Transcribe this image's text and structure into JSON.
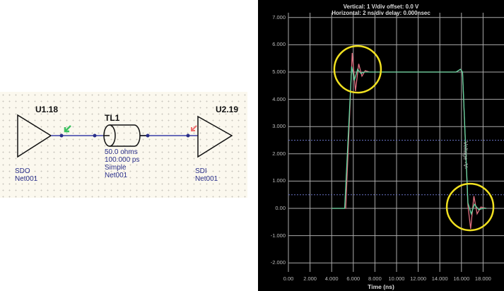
{
  "schematic": {
    "driver": {
      "ref": "U1.18",
      "pin": "SDO",
      "net": "Net001"
    },
    "line": {
      "ref": "TL1",
      "impedance": "50.0 ohms",
      "delay": "100.000 ps",
      "model": "Simple",
      "net": "Net001"
    },
    "receiver": {
      "ref": "U2.19",
      "pin": "SDI",
      "net": "Net001"
    },
    "colors": {
      "wire": "#3a3fa8",
      "probe_driver": "#3cc060",
      "probe_receiver": "#f07070"
    }
  },
  "scope": {
    "vertical": "Vertical: 1  V/div  offset: 0.0 V",
    "horizontal": "Horizontal: 2 ns/div  delay: 0.000nsec",
    "xlabel": "Time  (ns)",
    "ylabel": "Voltage -V-"
  },
  "chart_data": {
    "type": "line",
    "xlabel": "Time  (ns)",
    "ylabel": "Voltage -V-",
    "xlim": [
      0,
      20
    ],
    "ylim": [
      -2.3,
      7.6
    ],
    "xticks": [
      "0.00",
      "2.000",
      "4.000",
      "6.000",
      "8.000",
      "10.000",
      "12.000",
      "14.000",
      "16.000",
      "18.000"
    ],
    "yticks": [
      "7.000",
      "6.000",
      "5.000",
      "4.000",
      "3.000",
      "2.000",
      "1.000",
      "0.00",
      "-1.000",
      "-2.000"
    ],
    "grid": true,
    "thresholds": [
      2.5,
      0.5
    ],
    "series": [
      {
        "color": "#e07080",
        "points": [
          [
            4.0,
            0
          ],
          [
            5.3,
            0
          ],
          [
            5.9,
            5.7
          ],
          [
            6.2,
            4.3
          ],
          [
            6.5,
            5.3
          ],
          [
            6.8,
            4.85
          ],
          [
            7.1,
            5.05
          ],
          [
            7.5,
            5.0
          ],
          [
            15.5,
            5.0
          ],
          [
            15.9,
            5.1
          ],
          [
            16.1,
            5.0
          ],
          [
            16.6,
            0.1
          ],
          [
            16.85,
            -0.75
          ],
          [
            17.15,
            0.45
          ],
          [
            17.45,
            -0.2
          ],
          [
            17.8,
            0.05
          ],
          [
            18.3,
            0
          ]
        ]
      },
      {
        "color": "#5fd7a0",
        "points": [
          [
            4.0,
            0
          ],
          [
            5.2,
            0
          ],
          [
            5.85,
            5.2
          ],
          [
            6.1,
            4.7
          ],
          [
            6.4,
            5.1
          ],
          [
            6.7,
            4.95
          ],
          [
            7.0,
            5.0
          ],
          [
            8.0,
            5.0
          ],
          [
            15.5,
            5.0
          ],
          [
            15.9,
            5.1
          ],
          [
            16.1,
            5.0
          ],
          [
            16.6,
            0.2
          ],
          [
            16.9,
            -0.2
          ],
          [
            17.2,
            0.15
          ],
          [
            17.6,
            -0.05
          ],
          [
            18.0,
            0
          ],
          [
            18.3,
            0
          ]
        ]
      }
    ],
    "highlights": [
      {
        "x": 6.4,
        "y": 5.1,
        "color": "#f0e020"
      },
      {
        "x": 16.8,
        "y": 0.05,
        "color": "#f0e020"
      }
    ]
  }
}
